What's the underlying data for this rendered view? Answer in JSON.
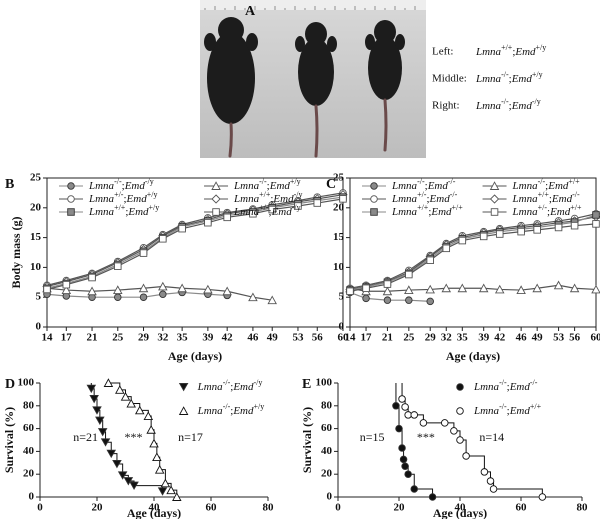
{
  "photo": {
    "label": "A",
    "captions": [
      {
        "position": "Left:",
        "genotype": "Lmna+/+;Emd+/y"
      },
      {
        "position": "Middle:",
        "genotype": "Lmna-/-;Emd+/y"
      },
      {
        "position": "Right:",
        "genotype": "Lmna-/-;Emd-/y"
      }
    ]
  },
  "chart_data": [
    {
      "type": "line",
      "panel": "B",
      "y_label": "Body mass (g)",
      "x_label": "Age (days)",
      "x": [
        14,
        17,
        21,
        25,
        29,
        32,
        35,
        39,
        42,
        46,
        49,
        53,
        56,
        60
      ],
      "xlim": [
        14,
        60
      ],
      "xticks": [
        14,
        17,
        21,
        25,
        29,
        32,
        35,
        39,
        42,
        46,
        49,
        53,
        56,
        60
      ],
      "ylim": [
        0,
        25
      ],
      "yticks": [
        0,
        5,
        10,
        15,
        20,
        25
      ],
      "series": [
        {
          "name": "Lmna-/-;Emd-/y",
          "marker": "circle-filled",
          "color": "#8a8a8a",
          "values": [
            5.5,
            5.2,
            5,
            5,
            5,
            5.5,
            5.8,
            5.5,
            5.3,
            null,
            null,
            null,
            null,
            null
          ]
        },
        {
          "name": "Lmna-/-;Emd+/y",
          "marker": "triangle-open",
          "color": "#555555",
          "values": [
            6.5,
            6.2,
            6,
            6.2,
            6.5,
            6.8,
            6.5,
            6.3,
            6,
            5,
            4.5,
            null,
            null,
            null
          ]
        },
        {
          "name": "Lmna+/-;Emd+/y",
          "marker": "circle-open",
          "color": "#555555",
          "values": [
            7,
            7.8,
            9,
            11,
            13.3,
            15.5,
            17.2,
            18.3,
            19.2,
            19.8,
            20.5,
            21.2,
            21.8,
            22.5
          ]
        },
        {
          "name": "Lmna+/+;Emd-/y",
          "marker": "diamond-open",
          "color": "#555555",
          "values": [
            6.8,
            7.6,
            8.8,
            10.8,
            13,
            15.3,
            17,
            18,
            19,
            19.6,
            20.2,
            21,
            21.5,
            22.2
          ]
        },
        {
          "name": "Lmna+/+;Emd+/y",
          "marker": "square-filled",
          "color": "#8a8a8a",
          "values": [
            6.5,
            7.3,
            8.5,
            10.5,
            12.7,
            15,
            16.8,
            17.8,
            18.7,
            19.3,
            20,
            20.7,
            21.2,
            21.8
          ]
        },
        {
          "name": "Lmna+/-;Emd-/y",
          "marker": "square-open",
          "color": "#555555",
          "values": [
            6.3,
            7.1,
            8.3,
            10.2,
            12.4,
            14.8,
            16.5,
            17.5,
            18.4,
            19,
            19.7,
            20.3,
            20.8,
            21.5
          ]
        }
      ]
    },
    {
      "type": "line",
      "panel": "C",
      "x_label": "Age (days)",
      "x": [
        14,
        17,
        21,
        25,
        29,
        32,
        35,
        39,
        42,
        46,
        49,
        53,
        56,
        60
      ],
      "xlim": [
        14,
        60
      ],
      "xticks": [
        14,
        17,
        21,
        25,
        29,
        32,
        35,
        39,
        42,
        46,
        49,
        53,
        56,
        60
      ],
      "ylim": [
        0,
        25
      ],
      "yticks": [
        0,
        5,
        10,
        15,
        20,
        25
      ],
      "series": [
        {
          "name": "Lmna-/-;Emd-/-",
          "marker": "circle-filled",
          "color": "#8a8a8a",
          "values": [
            5.8,
            4.8,
            4.5,
            4.5,
            4.3,
            null,
            null,
            null,
            null,
            null,
            null,
            null,
            null,
            null
          ]
        },
        {
          "name": "Lmna-/-;Emd+/+",
          "marker": "triangle-open",
          "color": "#555555",
          "values": [
            6.5,
            6,
            6,
            6.2,
            6.3,
            6.5,
            6.5,
            6.5,
            6.3,
            6.2,
            6.5,
            7,
            6.5,
            6.3
          ]
        },
        {
          "name": "Lmna+/-;Emd-/-",
          "marker": "circle-open",
          "color": "#555555",
          "values": [
            6.5,
            7,
            7.8,
            9.5,
            12,
            14,
            15.3,
            16,
            16.5,
            17,
            17.3,
            17.8,
            18.2,
            19
          ]
        },
        {
          "name": "Lmna+/+;Emd-/-",
          "marker": "diamond-open",
          "color": "#555555",
          "values": [
            6.3,
            6.8,
            7.6,
            9.2,
            11.8,
            13.8,
            15,
            15.8,
            16.3,
            16.7,
            17,
            17.5,
            17.8,
            18.5
          ]
        },
        {
          "name": "Lmna+/+;Emd+/+",
          "marker": "square-filled",
          "color": "#8a8a8a",
          "values": [
            6.2,
            6.7,
            7.5,
            9,
            11.5,
            13.5,
            14.8,
            15.5,
            16,
            16.4,
            16.7,
            17.2,
            17.6,
            18.8
          ]
        },
        {
          "name": "Lmna+/-;Emd+/+",
          "marker": "square-open",
          "color": "#555555",
          "values": [
            6,
            6.5,
            7.2,
            8.8,
            11.2,
            13.2,
            14.5,
            15.2,
            15.6,
            16,
            16.3,
            16.7,
            17,
            17.3
          ]
        }
      ]
    },
    {
      "type": "step",
      "panel": "D",
      "y_label": "Survival (%)",
      "x_label": "Age (days)",
      "xlim": [
        0,
        80
      ],
      "xticks": [
        0,
        20,
        40,
        60,
        80
      ],
      "ylim": [
        0,
        100
      ],
      "yticks": [
        0,
        20,
        40,
        60,
        80,
        100
      ],
      "annotations": [
        "n=21",
        "***",
        "n=17"
      ],
      "series": [
        {
          "name": "Lmna-/-;Emd-/y",
          "marker": "triangle-down-filled",
          "color": "#111111",
          "x": [
            18,
            19,
            20,
            21,
            22,
            23,
            25,
            27,
            29,
            31,
            33,
            43
          ],
          "values": [
            95,
            86,
            76,
            67,
            57,
            48,
            38,
            29,
            19,
            14,
            10,
            5
          ]
        },
        {
          "name": "Lmna-/-;Emd+/y",
          "marker": "triangle-open",
          "color": "#111111",
          "x": [
            24,
            28,
            30,
            32,
            35,
            38,
            39,
            40,
            41,
            42,
            44,
            46,
            48
          ],
          "values": [
            100,
            94,
            88,
            82,
            76,
            71,
            59,
            47,
            35,
            24,
            12,
            6,
            0
          ]
        }
      ]
    },
    {
      "type": "step",
      "panel": "E",
      "y_label": "Survival (%)",
      "x_label": "Age (days)",
      "xlim": [
        0,
        80
      ],
      "xticks": [
        0,
        20,
        40,
        60,
        80
      ],
      "ylim": [
        0,
        100
      ],
      "yticks": [
        0,
        20,
        40,
        60,
        80,
        100
      ],
      "annotations": [
        "n=15",
        "***",
        "n=14"
      ],
      "series": [
        {
          "name": "Lmna-/-;Emd-/-",
          "marker": "circle-filled",
          "color": "#111111",
          "x": [
            19,
            20,
            21,
            21.5,
            22,
            23,
            25,
            31
          ],
          "values": [
            80,
            60,
            43,
            33,
            27,
            20,
            7,
            0
          ]
        },
        {
          "name": "Lmna-/-;Emd+/+",
          "marker": "circle-open",
          "color": "#111111",
          "x": [
            21,
            22,
            23,
            25,
            28,
            35,
            38,
            40,
            42,
            48,
            50,
            51,
            67
          ],
          "values": [
            86,
            79,
            72,
            72,
            65,
            65,
            58,
            50,
            36,
            22,
            14,
            7,
            0
          ]
        }
      ]
    }
  ]
}
